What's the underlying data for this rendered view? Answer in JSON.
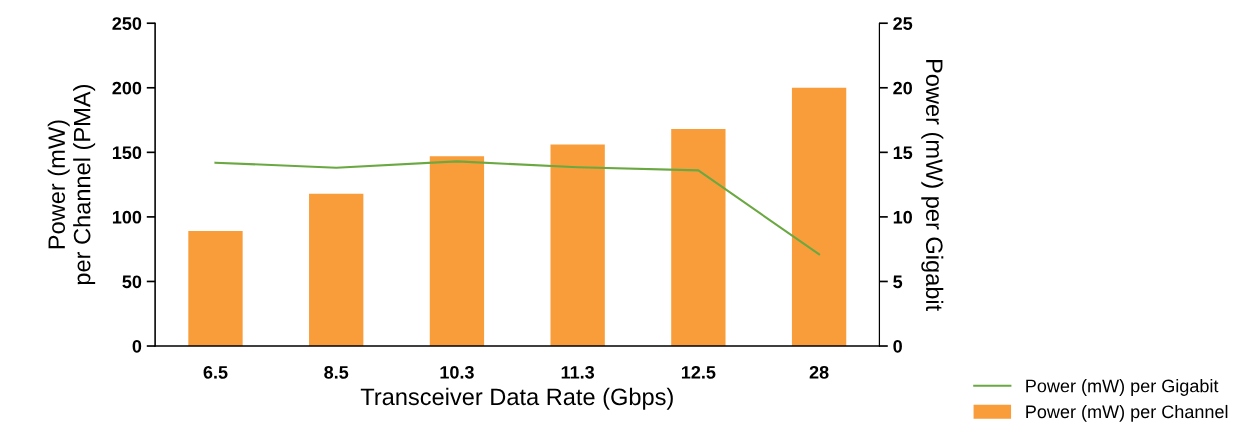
{
  "chart_data": {
    "type": "bar",
    "xlabel": "Transceiver Data Rate (Gbps)",
    "ylabel": "Power (mW)\nper Channel (PMA)",
    "y2label": "Power (mW) per Gigabit",
    "categories": [
      "6.5",
      "8.5",
      "10.3",
      "11.3",
      "12.5",
      "28"
    ],
    "series": [
      {
        "name": "Power (mW) per Gigabit",
        "type": "line",
        "axis": "y2",
        "color": "#6aa842",
        "values": [
          14.2,
          13.8,
          14.3,
          13.85,
          13.6,
          7.1
        ]
      },
      {
        "name": "Power (mW) per Channel",
        "color": "#f99d3a",
        "values": [
          89,
          118,
          147,
          156,
          168,
          200
        ]
      }
    ],
    "ylim": [
      0,
      250
    ],
    "yticks": [
      0,
      50,
      100,
      150,
      200,
      250
    ],
    "y2lim": [
      0,
      25
    ],
    "y2ticks": [
      0,
      5,
      10,
      15,
      20,
      25
    ],
    "grid": false,
    "legend": "bottom right",
    "marker": "none",
    "line_style": "solid"
  }
}
